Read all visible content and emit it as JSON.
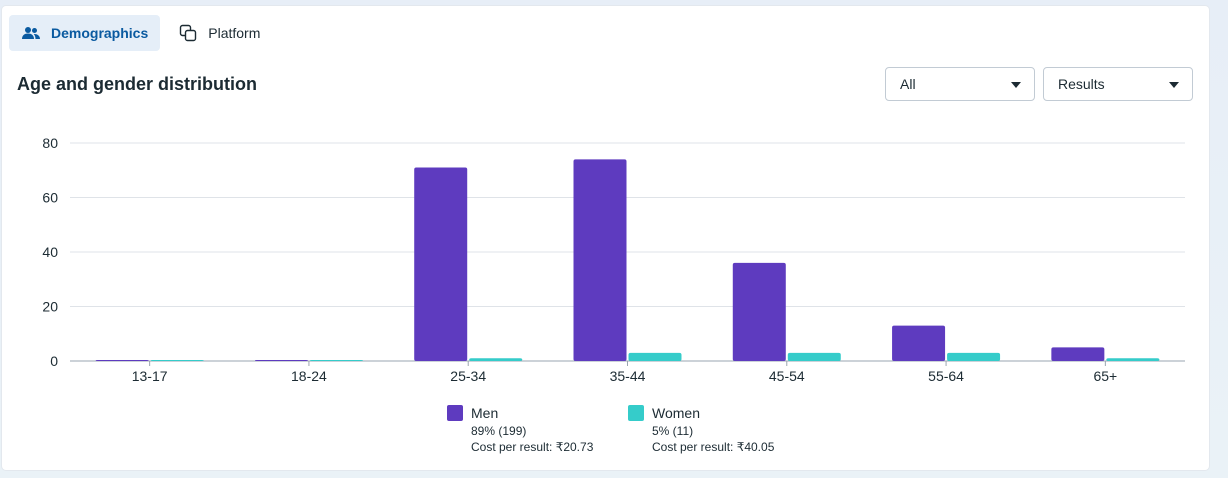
{
  "tabs": [
    {
      "label": "Demographics",
      "icon": "people-icon",
      "active": true
    },
    {
      "label": "Platform",
      "icon": "copy-icon",
      "active": false
    }
  ],
  "section_title": "Age and gender distribution",
  "filters": {
    "audience": {
      "value": "All"
    },
    "metric": {
      "value": "Results"
    }
  },
  "chart_data": {
    "type": "bar",
    "title": "",
    "xlabel": "",
    "ylabel": "",
    "categories": [
      "13-17",
      "18-24",
      "25-34",
      "35-44",
      "45-54",
      "55-64",
      "65+"
    ],
    "ylim": [
      0,
      80
    ],
    "yticks": [
      0,
      20,
      40,
      60,
      80
    ],
    "grid": true,
    "legend_position": "bottom",
    "series": [
      {
        "name": "Men",
        "color": "#5e3bbf",
        "values": [
          0,
          0,
          71,
          74,
          36,
          13,
          5
        ]
      },
      {
        "name": "Women",
        "color": "#35ccca",
        "values": [
          0,
          0,
          1,
          3,
          3,
          3,
          1
        ]
      }
    ]
  },
  "legend": [
    {
      "name": "Men",
      "color": "#5e3bbf",
      "share": "89% (199)",
      "cost": "Cost per result: ₹20.73"
    },
    {
      "name": "Women",
      "color": "#35ccca",
      "share": "5% (11)",
      "cost": "Cost per result: ₹40.05"
    }
  ]
}
